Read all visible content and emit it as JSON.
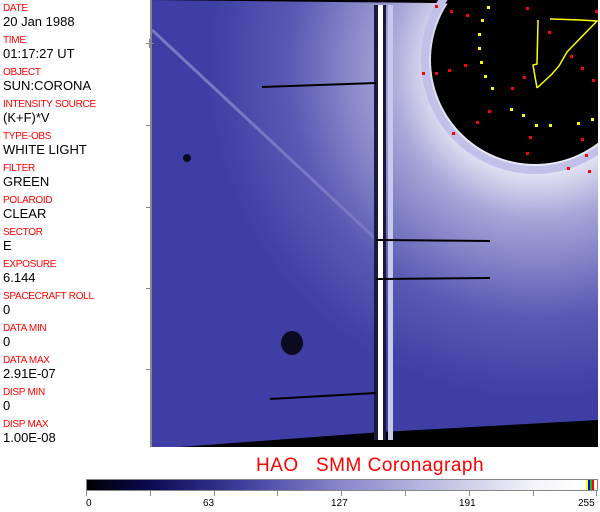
{
  "info_panel": {
    "fields": [
      {
        "label": "DATE",
        "value": "20 Jan 1988"
      },
      {
        "label": "TIME",
        "value": "01:17:27 UT"
      },
      {
        "label": "OBJECT",
        "value": "SUN:CORONA"
      },
      {
        "label": "INTENSITY SOURCE",
        "value": "(K+F)*V"
      },
      {
        "label": "TYPE-OBS",
        "value": "WHITE LIGHT"
      },
      {
        "label": "FILTER",
        "value": "GREEN"
      },
      {
        "label": "POLAROID",
        "value": "CLEAR"
      },
      {
        "label": "SECTOR",
        "value": "E"
      },
      {
        "label": "EXPOSURE",
        "value": "6.144"
      },
      {
        "label": "SPACECRAFT ROLL",
        "value": "0"
      },
      {
        "label": "DATA MIN",
        "value": "0"
      },
      {
        "label": "DATA MAX",
        "value": "2.91E-07"
      },
      {
        "label": "DISP MIN",
        "value": "0"
      },
      {
        "label": "DISP MAX",
        "value": "1.00E-08"
      }
    ]
  },
  "title": "HAO   SMM Coronagraph",
  "colorbar": {
    "ticks": [
      "0",
      "63",
      "127",
      "191",
      "255"
    ],
    "colors": {
      "low": "#000000",
      "mid": "#8888cc",
      "high": "#ffffff"
    }
  },
  "colors": {
    "label": "#ff0000",
    "overlay_yellow": "#ffff00",
    "overlay_red": "#ff0000",
    "image_blue": "#4a4aa8"
  }
}
